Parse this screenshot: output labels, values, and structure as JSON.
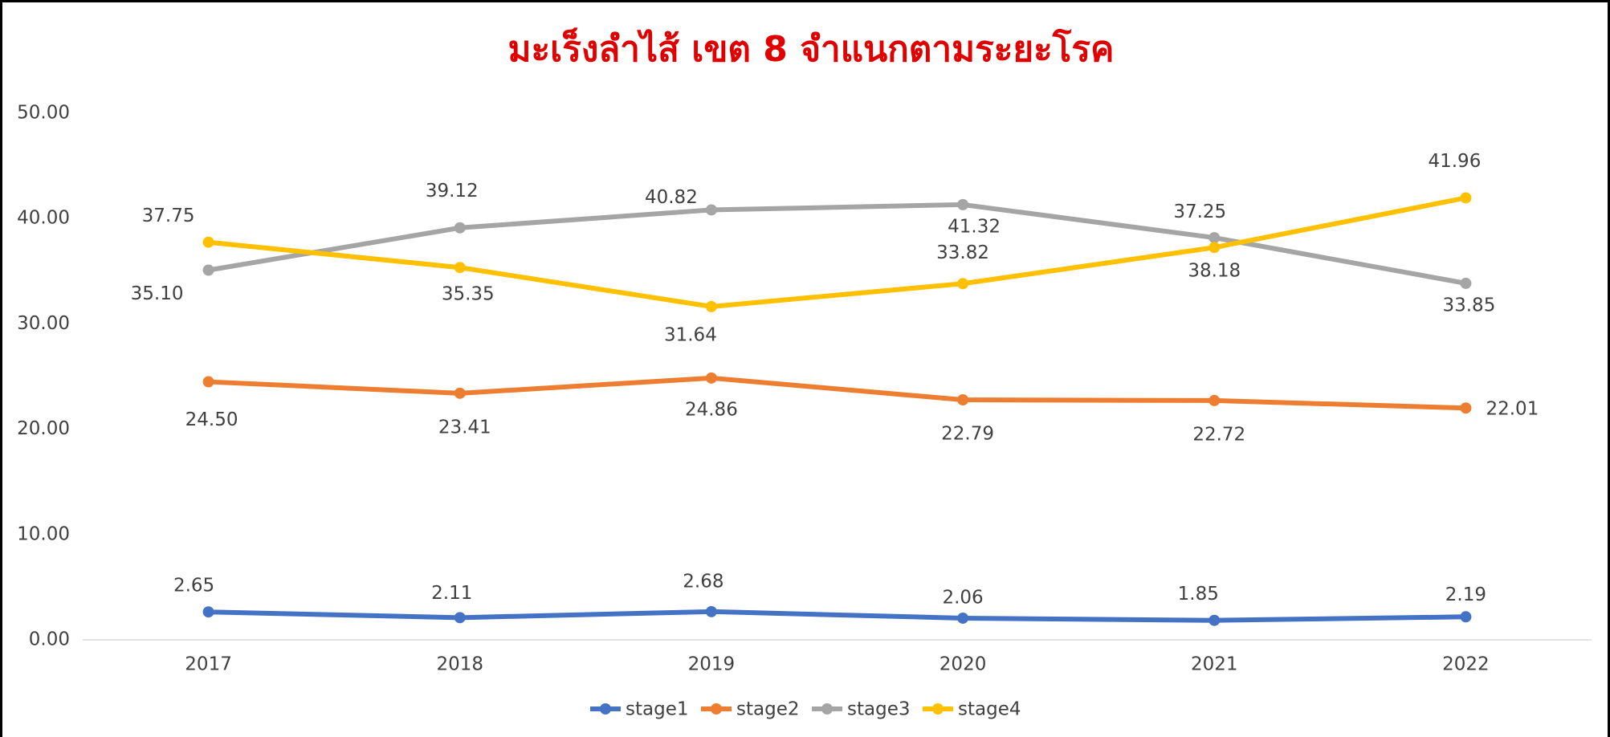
{
  "chart_data": {
    "type": "line",
    "title": "มะเร็งลำไส้ เขต 8 จำแนกตามระยะโรค",
    "categories": [
      "2017",
      "2018",
      "2019",
      "2020",
      "2021",
      "2022"
    ],
    "series": [
      {
        "name": "stage1",
        "color": "#4472c4",
        "values": [
          2.65,
          2.11,
          2.68,
          2.06,
          1.85,
          2.19
        ],
        "value_labels": [
          "2.65",
          "2.11",
          "2.68",
          "2.06",
          "1.85",
          "2.19"
        ]
      },
      {
        "name": "stage2",
        "color": "#ed7d31",
        "values": [
          24.5,
          23.41,
          24.86,
          22.79,
          22.72,
          22.01
        ],
        "value_labels": [
          "24.50",
          "23.41",
          "24.86",
          "22.79",
          "22.72",
          "22.01"
        ]
      },
      {
        "name": "stage3",
        "color": "#a5a5a5",
        "values": [
          35.1,
          39.12,
          40.82,
          41.32,
          38.18,
          33.85
        ],
        "value_labels": [
          "35.10",
          "39.12",
          "40.82",
          "41.32",
          "38.18",
          "33.85"
        ]
      },
      {
        "name": "stage4",
        "color": "#ffc000",
        "values": [
          37.75,
          35.35,
          31.64,
          33.82,
          37.25,
          41.96
        ],
        "value_labels": [
          "37.75",
          "35.35",
          "31.64",
          "33.82",
          "37.25",
          "41.96"
        ]
      }
    ],
    "ylim": [
      0,
      50
    ],
    "yticks": [
      {
        "value": 0,
        "label": "0.00"
      },
      {
        "value": 10,
        "label": "10.00"
      },
      {
        "value": 20,
        "label": "20.00"
      },
      {
        "value": 30,
        "label": "30.00"
      },
      {
        "value": 40,
        "label": "40.00"
      },
      {
        "value": 50,
        "label": "50.00"
      }
    ],
    "grid": false,
    "legend": "bottom"
  }
}
